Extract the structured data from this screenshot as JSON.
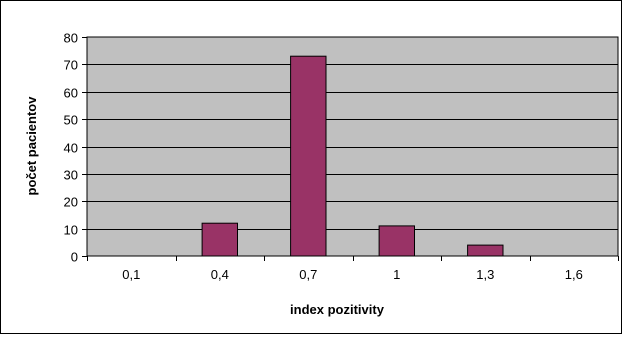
{
  "colors": {
    "plot_background": "#c0c0c0",
    "bar_fill": "#993366",
    "bar_stroke": "#000000",
    "gridline": "#000000",
    "chart_background": "#ffffff",
    "chart_border": "#000000"
  },
  "chart_data": {
    "type": "bar",
    "categories": [
      "0,1",
      "0,4",
      "0,7",
      "1",
      "1,3",
      "1,6"
    ],
    "values": [
      0,
      12,
      73,
      11,
      4,
      0
    ],
    "xlabel": "index pozitivity",
    "ylabel": "počet pacientov",
    "ylim": [
      0,
      80
    ],
    "yticks": [
      0,
      10,
      20,
      30,
      40,
      50,
      60,
      70,
      80
    ],
    "grid": true,
    "legend": "none"
  }
}
